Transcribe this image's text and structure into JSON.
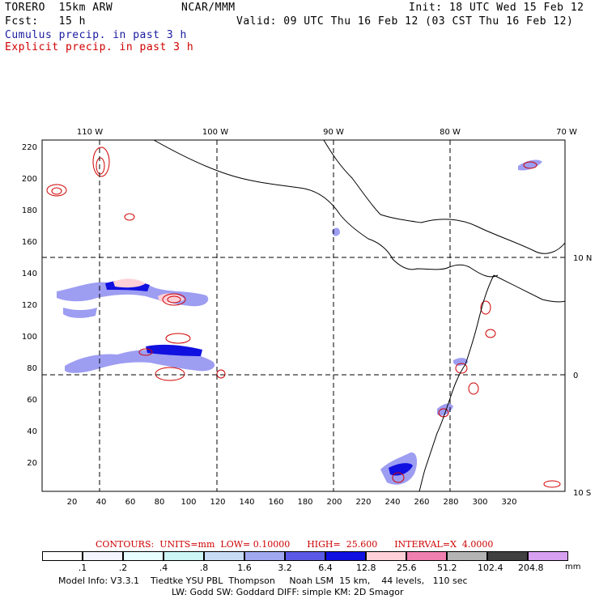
{
  "header": {
    "model": "TORERO  15km ARW",
    "org": "NCAR/MMM",
    "init": "Init: 18 UTC Wed 15 Feb 12",
    "fcst": "Fcst:   15 h",
    "valid": "Valid: 09 UTC Thu 16 Feb 12 (03 CST Thu 16 Feb 12)",
    "cumulus_label": "Cumulus precip. in past 3 h",
    "explicit_label": "Explicit precip. in past 3 h"
  },
  "colors": {
    "cumulus": "#1a1aa0",
    "explicit": "#d00000"
  },
  "map": {
    "top_lon_labels": [
      "110 W",
      "100 W",
      "90 W",
      "80 W",
      "70 W"
    ],
    "right_lat_labels": [
      "10 N",
      "0",
      "10 S"
    ],
    "x_ticks": [
      "20",
      "40",
      "60",
      "80",
      "100",
      "120",
      "140",
      "160",
      "180",
      "200",
      "220",
      "240",
      "260",
      "280",
      "300",
      "320"
    ],
    "y_ticks": [
      "220",
      "200",
      "180",
      "160",
      "140",
      "120",
      "100",
      "80",
      "60",
      "40",
      "20"
    ]
  },
  "legend": {
    "contours_text": "CONTOURS:  UNITS=mm  LOW= 0.10000      HIGH=  25.600      INTERVAL=X  4.0000",
    "levels": [
      ".1",
      ".2",
      ".4",
      ".8",
      "1.6",
      "3.2",
      "6.4",
      "12.8",
      "25.6",
      "51.2",
      "102.4",
      "204.8"
    ],
    "units": "mm",
    "colors": [
      "#ffffff",
      "#f4f4ff",
      "#e8ffff",
      "#ccf5f5",
      "#c8dcf5",
      "#a0a8f0",
      "#5a5ae6",
      "#1010e0",
      "#ffd0d8",
      "#f080b0",
      "#b4b4b4",
      "#404040",
      "#d8a0f0"
    ]
  },
  "footer": {
    "line1": "Model Info: V3.3.1    Tiedtke YSU PBL  Thompson     Noah LSM  15 km,    44 levels,   110 sec",
    "line2": "LW: Godd SW: Goddard DIFF: simple KM: 2D Smagor"
  }
}
